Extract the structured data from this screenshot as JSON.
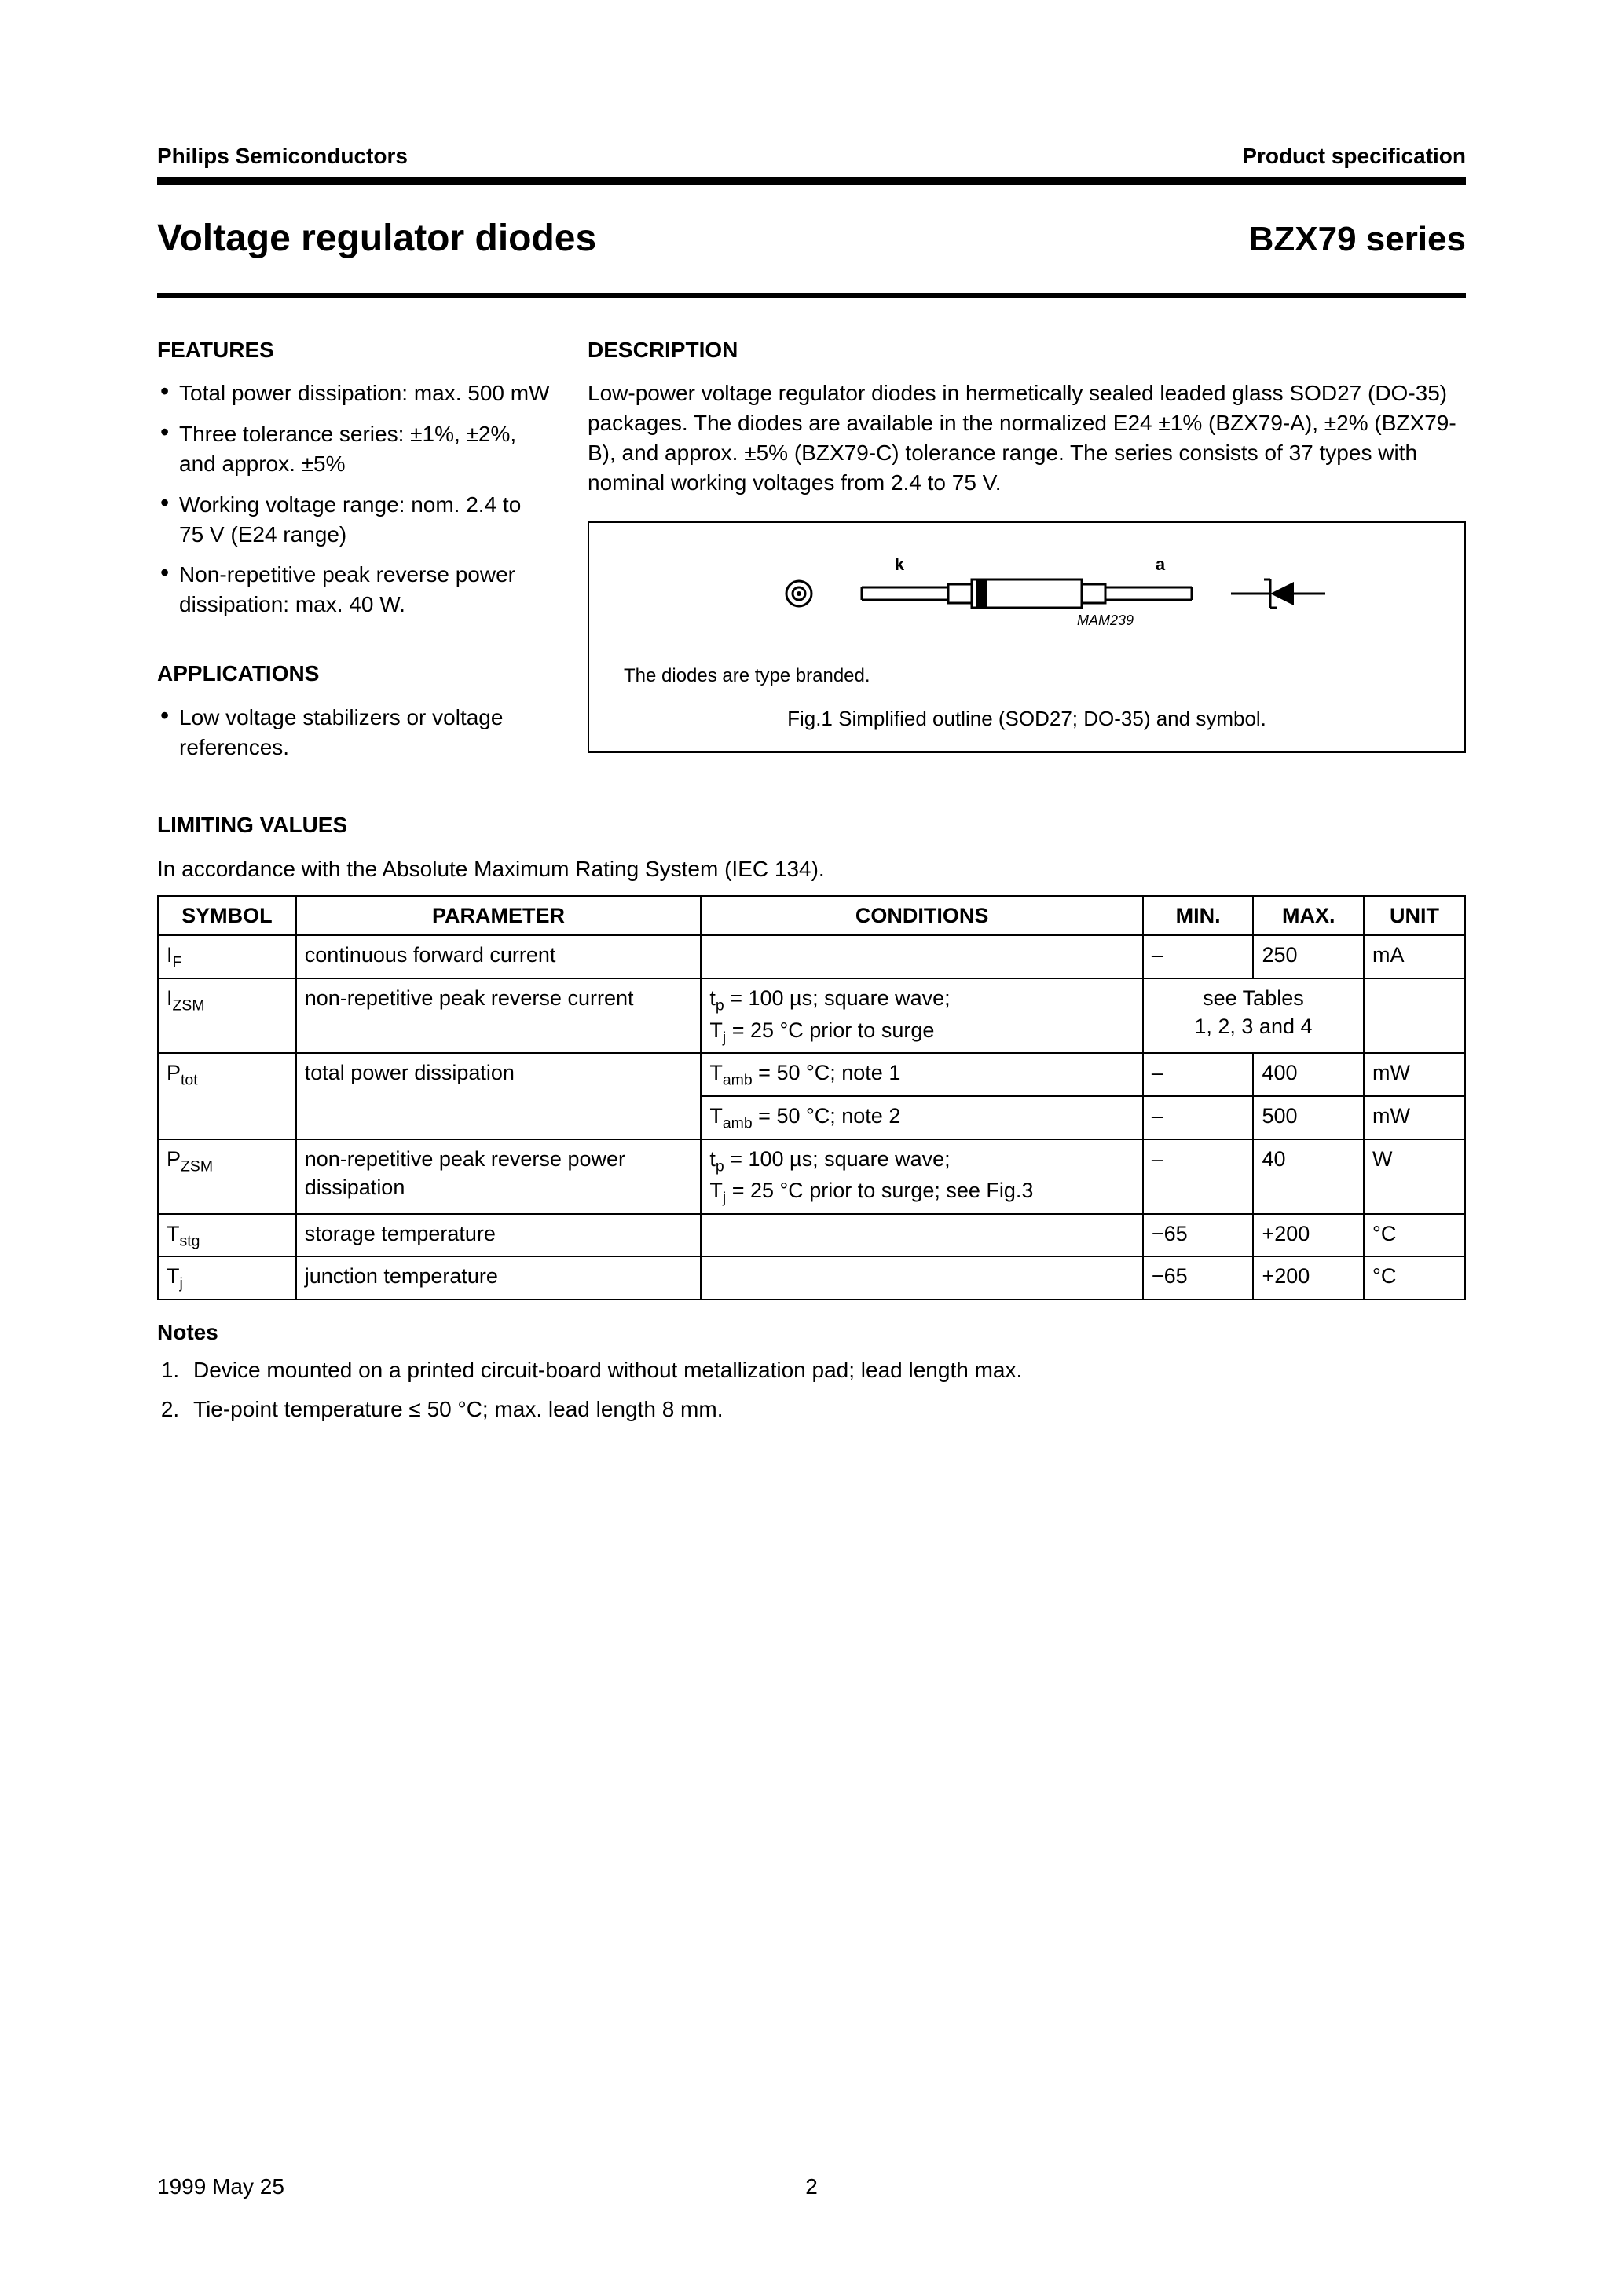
{
  "header": {
    "left": "Philips Semiconductors",
    "right": "Product specification"
  },
  "title": {
    "left": "Voltage regulator diodes",
    "right": "BZX79 series"
  },
  "features": {
    "heading": "FEATURES",
    "items": [
      "Total power dissipation: max. 500 mW",
      "Three tolerance series: ±1%, ±2%, and approx. ±5%",
      "Working voltage range: nom. 2.4 to 75 V (E24 range)",
      "Non-repetitive peak reverse power dissipation: max. 40 W."
    ]
  },
  "applications": {
    "heading": "APPLICATIONS",
    "items": [
      "Low voltage stabilizers or voltage references."
    ]
  },
  "description": {
    "heading": "DESCRIPTION",
    "text": "Low-power voltage regulator diodes in hermetically sealed leaded glass SOD27 (DO-35) packages. The diodes are available in the normalized E24 ±1% (BZX79-A), ±2% (BZX79-B), and approx. ±5% (BZX79-C) tolerance range. The series consists of 37 types with nominal working voltages from 2.4 to 75 V."
  },
  "figure": {
    "label_k": "k",
    "label_a": "a",
    "code": "MAM239",
    "note": "The diodes are type branded.",
    "caption": "Fig.1  Simplified outline (SOD27; DO-35) and symbol."
  },
  "limiting": {
    "heading": "LIMITING VALUES",
    "sub": "In accordance with the Absolute Maximum Rating System (IEC 134).",
    "columns": [
      "SYMBOL",
      "PARAMETER",
      "CONDITIONS",
      "MIN.",
      "MAX.",
      "UNIT"
    ],
    "rows": [
      {
        "sym_html": "I<span class='sub'>F</span>",
        "param": "continuous forward current",
        "cond": "",
        "min": "–",
        "max": "250",
        "unit": "mA"
      },
      {
        "sym_html": "I<span class='sub'>ZSM</span>",
        "param": "non-repetitive peak reverse current",
        "cond": "t<span class='sub'>p</span> = 100 µs; square wave;<br>T<span class='sub'>j</span> = 25 °C prior to surge",
        "span": "see Tables<br>1, 2, 3 and 4",
        "unit": ""
      },
      {
        "sym_html": "P<span class='sub'>tot</span>",
        "param": "total power dissipation",
        "cond": "T<span class='sub'>amb</span> = 50 °C; note 1",
        "min": "–",
        "max": "400",
        "unit": "mW",
        "rowspan_sym": 2,
        "rowspan_param": 2
      },
      {
        "cond": "T<span class='sub'>amb</span> = 50 °C; note 2",
        "min": "–",
        "max": "500",
        "unit": "mW",
        "cont": true
      },
      {
        "sym_html": "P<span class='sub'>ZSM</span>",
        "param": "non-repetitive peak reverse power dissipation",
        "cond": "t<span class='sub'>p</span> = 100 µs; square wave;<br>T<span class='sub'>j</span> = 25 °C prior to surge; see Fig.3",
        "min": "–",
        "max": "40",
        "unit": "W"
      },
      {
        "sym_html": "T<span class='sub'>stg</span>",
        "param": "storage temperature",
        "cond": "",
        "min": "−65",
        "max": "+200",
        "unit": "°C"
      },
      {
        "sym_html": "T<span class='sub'>j</span>",
        "param": "junction temperature",
        "cond": "",
        "min": "−65",
        "max": "+200",
        "unit": "°C"
      }
    ]
  },
  "notes": {
    "heading": "Notes",
    "items": [
      "Device mounted on a printed circuit-board without metallization pad; lead length max.",
      "Tie-point temperature ≤ 50 °C; max. lead length 8 mm."
    ]
  },
  "footer": {
    "date": "1999 May 25",
    "page": "2"
  },
  "style": {
    "page_bg": "#ffffff",
    "text_color": "#000000",
    "rule_color": "#000000"
  }
}
